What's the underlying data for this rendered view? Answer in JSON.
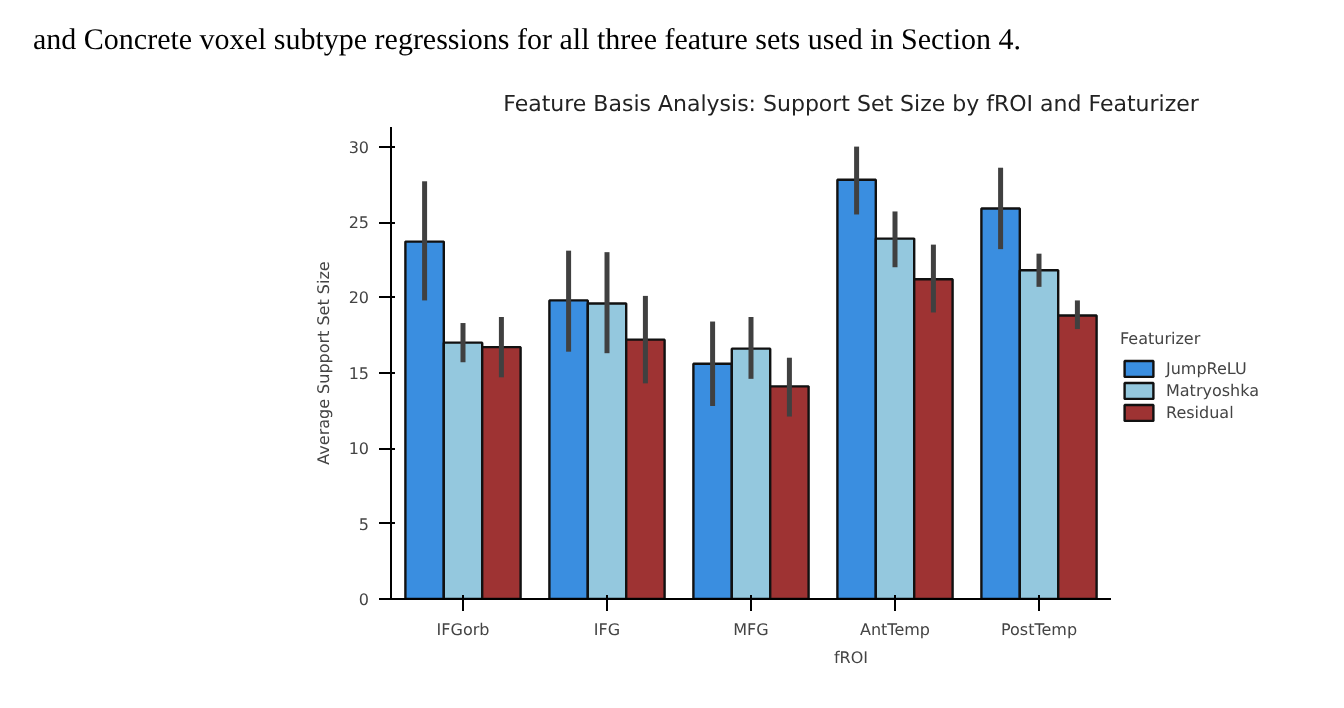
{
  "chart_data": {
    "type": "bar",
    "title": "Feature Basis Analysis: Support Set Size by fROI and Featurizer",
    "annotations": [
      "and Concrete voxel subtype regressions for all three feature sets used in Section 4."
    ],
    "xlabel": "fROI",
    "ylabel": "Average Support Set Size",
    "legend_title": "Featurizer",
    "categories": [
      "IFGorb",
      "IFG",
      "MFG",
      "AntTemp",
      "PostTemp"
    ],
    "series": [
      {
        "name": "JumpReLU",
        "color": "#3a8ee0",
        "values": [
          23.7,
          19.8,
          15.6,
          27.8,
          25.9
        ],
        "errors": [
          [
            19.8,
            27.7
          ],
          [
            16.4,
            23.1
          ],
          [
            12.8,
            18.4
          ],
          [
            25.5,
            30.0
          ],
          [
            23.2,
            28.6
          ]
        ]
      },
      {
        "name": "Matryoshka",
        "color": "#94c8de",
        "values": [
          17.0,
          19.6,
          16.6,
          23.9,
          21.8
        ],
        "errors": [
          [
            15.7,
            18.3
          ],
          [
            16.3,
            23.0
          ],
          [
            14.6,
            18.7
          ],
          [
            22.0,
            25.7
          ],
          [
            20.7,
            22.9
          ]
        ]
      },
      {
        "name": "Residual",
        "color": "#9e3333",
        "values": [
          16.7,
          17.2,
          14.1,
          21.2,
          18.8
        ],
        "errors": [
          [
            14.7,
            18.7
          ],
          [
            14.3,
            20.1
          ],
          [
            12.1,
            16.0
          ],
          [
            19.0,
            23.5
          ],
          [
            17.9,
            19.8
          ]
        ]
      }
    ],
    "ylim": [
      0,
      31.3
    ],
    "yticks": [
      0,
      5,
      10,
      15,
      20,
      25,
      30
    ],
    "grid": false,
    "legend": "right"
  }
}
